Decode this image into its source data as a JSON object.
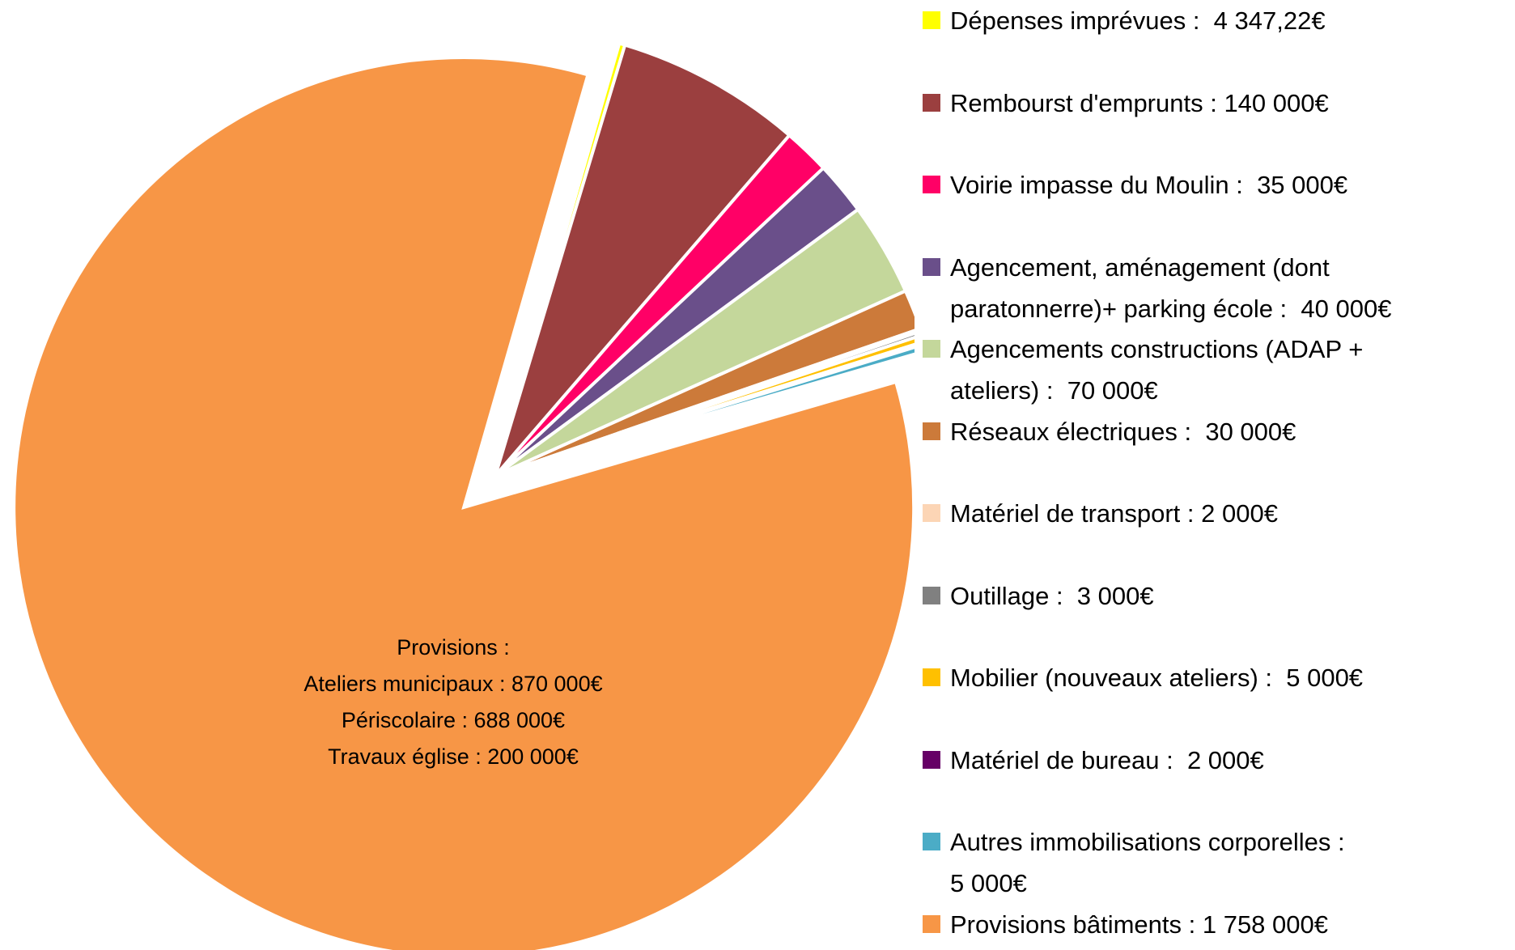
{
  "chart_data": {
    "type": "pie",
    "categories": [
      "Dépenses imprévues :  4 347,22€",
      "Rembourst d'emprunts : 140 000€",
      "Voirie impasse du Moulin :  35 000€",
      "Agencement, aménagement (dont\nparatonnerre)+ parking école :  40 000€",
      "Agencements constructions (ADAP +\nateliers) :  70 000€",
      "Réseaux électriques :  30 000€",
      "Matériel de transport : 2 000€",
      "Outillage :  3 000€",
      "Mobilier (nouveaux ateliers) :  5 000€",
      "Matériel de bureau :  2 000€",
      "Autres immobilisations corporelles :\n5 000€",
      "Provisions bâtiments : 1 758 000€"
    ],
    "values": [
      4347.22,
      140000,
      35000,
      40000,
      70000,
      30000,
      2000,
      3000,
      5000,
      2000,
      5000,
      1758000
    ],
    "colors": [
      "#ffff00",
      "#9b3f3f",
      "#ff0066",
      "#6a4f8a",
      "#c4d79b",
      "#cc7a3a",
      "#fcd5b5",
      "#808080",
      "#ffc000",
      "#660066",
      "#4bacc6",
      "#f79646"
    ],
    "annotation": [
      "Provisions  :",
      "Ateliers municipaux : 870 000€",
      "Périscolaire : 688 000€",
      "Travaux église : 200 000€"
    ],
    "legend": "right"
  }
}
